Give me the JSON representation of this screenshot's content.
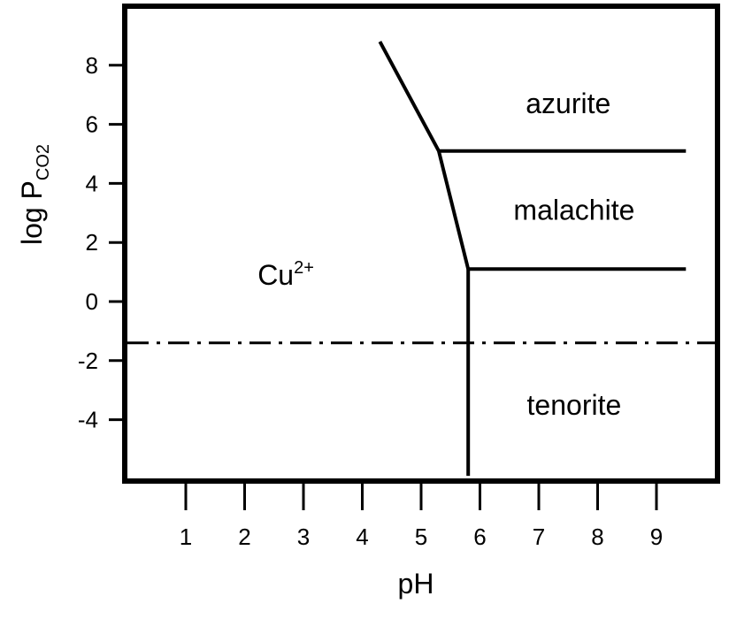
{
  "chart_data": {
    "type": "phase-diagram",
    "xlabel": "pH",
    "ylabel": {
      "main": "log P",
      "subscript": "CO2"
    },
    "xlim": [
      0,
      10
    ],
    "ylim": [
      -6,
      9.5
    ],
    "xticks": [
      1,
      2,
      3,
      4,
      5,
      6,
      7,
      8,
      9
    ],
    "yticks": [
      8,
      6,
      4,
      2,
      0,
      -2,
      -4
    ],
    "boundaries": [
      {
        "name": "cu2-azurite",
        "points": [
          [
            4.3,
            8.8
          ],
          [
            5.3,
            5.1
          ]
        ]
      },
      {
        "name": "cu2-malachite",
        "points": [
          [
            5.3,
            5.1
          ],
          [
            5.8,
            1.1
          ]
        ]
      },
      {
        "name": "cu2-tenorite",
        "points": [
          [
            5.8,
            1.1
          ],
          [
            5.8,
            -5.9
          ]
        ]
      },
      {
        "name": "azurite-malachite",
        "points": [
          [
            5.3,
            5.1
          ],
          [
            9.5,
            5.1
          ]
        ]
      },
      {
        "name": "malachite-tenorite",
        "points": [
          [
            5.8,
            1.1
          ],
          [
            9.5,
            1.1
          ]
        ]
      }
    ],
    "reference_line": {
      "style": "dash-dot",
      "y": -1.4
    },
    "regions": [
      {
        "label": "azurite",
        "x": 7.5,
        "y": 6.7
      },
      {
        "label": "malachite",
        "x": 7.6,
        "y": 3.1
      },
      {
        "label": "Cu",
        "superscript": "2+",
        "x": 2.7,
        "y": 0.9
      },
      {
        "label": "tenorite",
        "x": 7.6,
        "y": -3.5
      }
    ]
  }
}
